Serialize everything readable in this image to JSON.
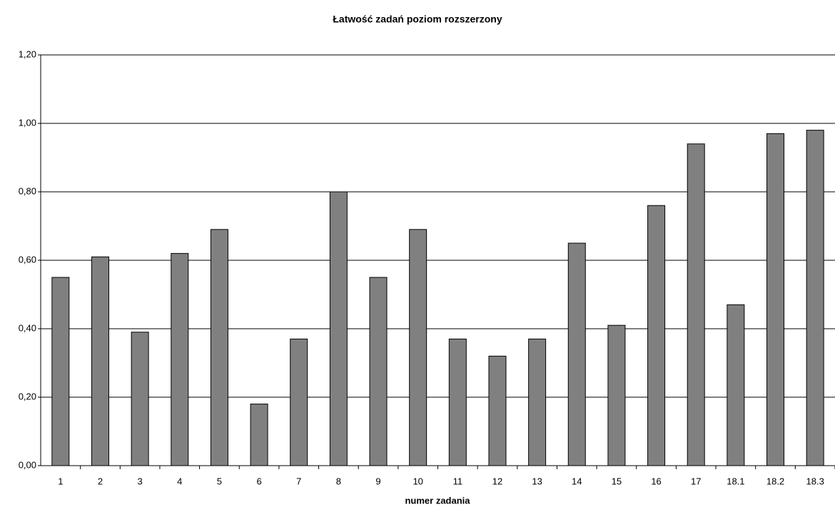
{
  "chart_data": {
    "type": "bar",
    "title": "Łatwość zadań poziom rozszerzony",
    "x_label": "numer zadania",
    "categories": [
      "1",
      "2",
      "3",
      "4",
      "5",
      "6",
      "7",
      "8",
      "9",
      "10",
      "11",
      "12",
      "13",
      "14",
      "15",
      "16",
      "17",
      "18.1",
      "18.2",
      "18.3"
    ],
    "values": [
      0.55,
      0.61,
      0.39,
      0.62,
      0.69,
      0.18,
      0.37,
      0.8,
      0.55,
      0.69,
      0.37,
      0.32,
      0.37,
      0.65,
      0.41,
      0.76,
      0.94,
      0.47,
      0.97,
      0.98
    ],
    "color": "#808080",
    "ylim": [
      0,
      1.2
    ],
    "yticks": [
      {
        "value": 0,
        "label": "0,00"
      },
      {
        "value": 0.2,
        "label": "0,20"
      },
      {
        "value": 0.4,
        "label": "0,40"
      },
      {
        "value": 0.6,
        "label": "0,60"
      },
      {
        "value": 0.8,
        "label": "0,80"
      },
      {
        "value": 1.0,
        "label": "1,00"
      },
      {
        "value": 1.2,
        "label": "1,20"
      }
    ],
    "grid": true
  }
}
